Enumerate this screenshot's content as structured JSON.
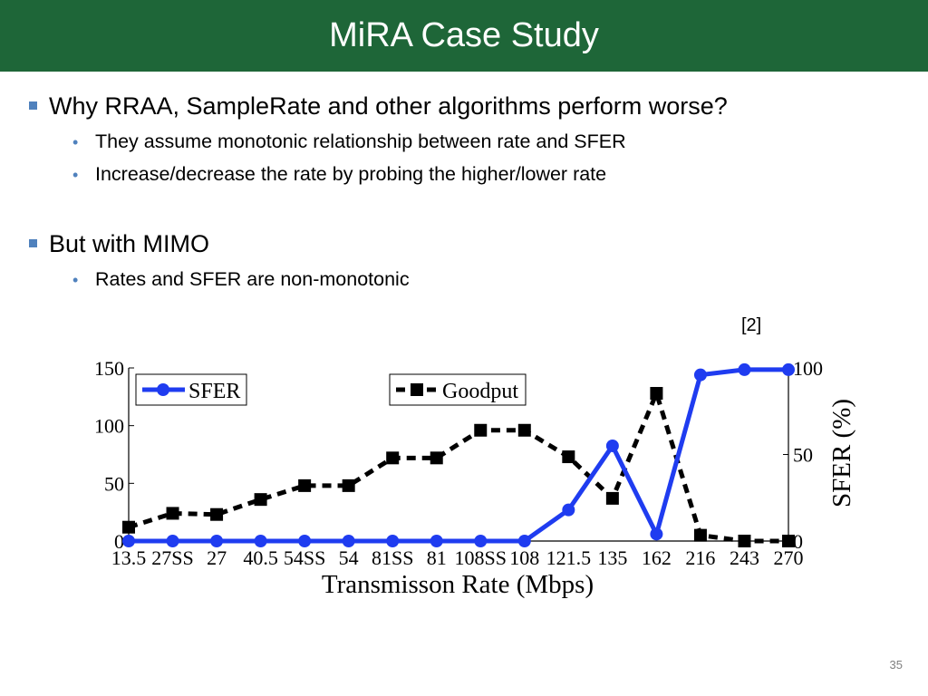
{
  "slide": {
    "title": "MiRA Case Study",
    "bullets": [
      {
        "text": "Why RRAA, SampleRate and other algorithms perform worse?",
        "sub": [
          "They assume monotonic relationship between rate and SFER",
          "Increase/decrease the rate by probing the higher/lower rate"
        ]
      },
      {
        "text": "But with MIMO",
        "sub": [
          "Rates and SFER are non-monotonic"
        ]
      }
    ],
    "reference": "[2]",
    "page_number": "35"
  },
  "chart_data": {
    "type": "line",
    "categories": [
      "13.5",
      "27SS",
      "27",
      "40.5",
      "54SS",
      "54",
      "81SS",
      "81",
      "108SS",
      "108",
      "121.5",
      "135",
      "162",
      "216",
      "243",
      "270"
    ],
    "xlabel": "Transmisson Rate (Mbps)",
    "ylabel_right": "SFER (%)",
    "ylim_left": [
      0,
      150
    ],
    "yticks_left": [
      0,
      50,
      100,
      150
    ],
    "ylim_right": [
      0,
      100
    ],
    "yticks_right": [
      0,
      50,
      100
    ],
    "series": [
      {
        "name": "SFER",
        "axis": "right",
        "color": "#1f3cf0",
        "style": "solid",
        "marker": "circle",
        "values": [
          0,
          0,
          0,
          0,
          0,
          0,
          0,
          0,
          0,
          0,
          18,
          55,
          4,
          96,
          99,
          99
        ]
      },
      {
        "name": "Goodput",
        "axis": "left",
        "color": "#000000",
        "style": "dashed",
        "marker": "square",
        "values": [
          12,
          24,
          23,
          36,
          48,
          48,
          72,
          72,
          96,
          96,
          73,
          37,
          128,
          5,
          0,
          0
        ]
      }
    ],
    "legend": [
      "top-left",
      "top-center"
    ],
    "grid": false
  }
}
